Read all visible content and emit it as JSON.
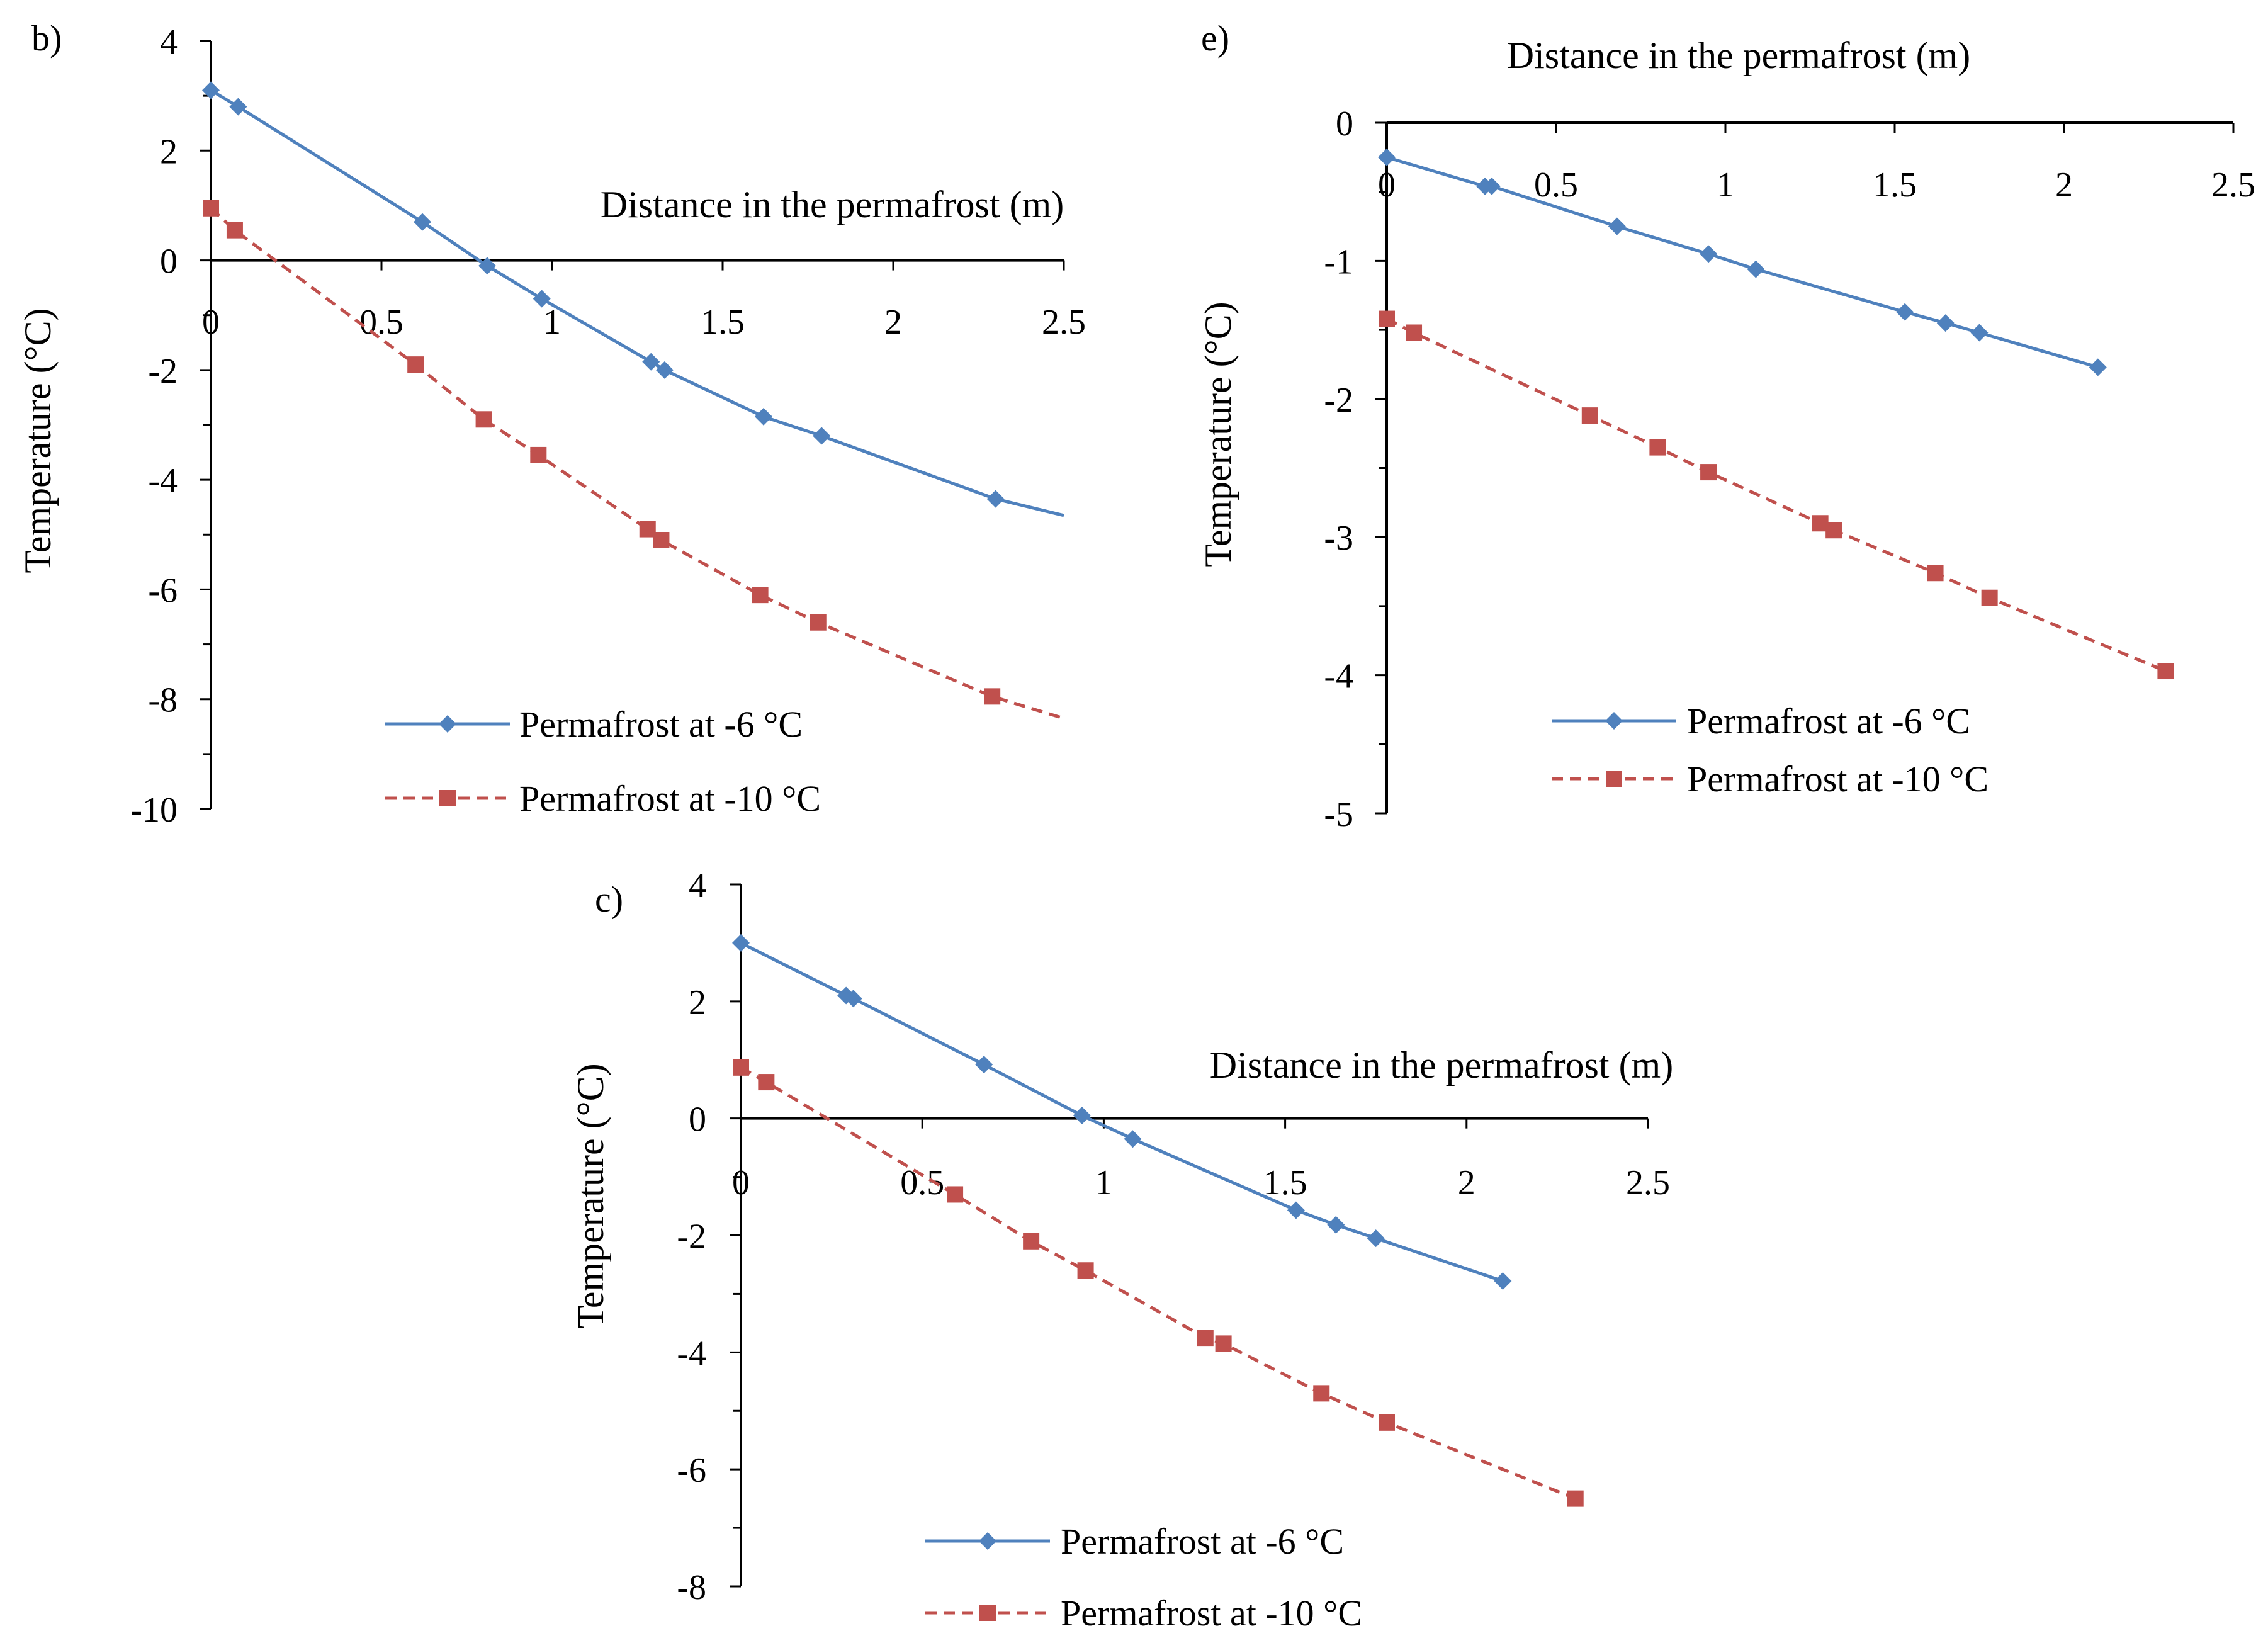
{
  "colors": {
    "axis": "#000000",
    "blue": "#4f81bd",
    "red": "#c0504d"
  },
  "chart_data": [
    {
      "panel_label": "b)",
      "type": "line",
      "title": "",
      "xlabel": "Distance in the permafrost (m)",
      "ylabel": "Temperature (°C)",
      "xlim": [
        0,
        2.5
      ],
      "ylim": [
        -10,
        4
      ],
      "xticks": [
        0,
        0.5,
        1,
        1.5,
        2,
        2.5
      ],
      "xtick_labels": [
        "0",
        "0.5",
        "1",
        "1.5",
        "2",
        "2.5"
      ],
      "yticks": [
        4,
        2,
        0,
        -2,
        -4,
        -6,
        -8,
        -10
      ],
      "ytick_labels": [
        "4",
        "2",
        "0",
        "-2",
        "-4",
        "-6",
        "-8",
        "-10"
      ],
      "series": [
        {
          "name": "Permafrost at -6 °C",
          "marker": "diamond",
          "line": "solid",
          "color": "#4f81bd",
          "x": [
            0,
            0.08,
            0.62,
            0.81,
            0.97,
            1.29,
            1.33,
            1.62,
            1.79,
            2.3
          ],
          "y": [
            3.1,
            2.8,
            0.7,
            -0.1,
            -0.7,
            -1.85,
            -2.0,
            -2.85,
            -3.2,
            -4.35
          ],
          "line_end": [
            2.5,
            -4.65
          ]
        },
        {
          "name": "Permafrost at -10 °C",
          "marker": "square",
          "line": "dashed",
          "color": "#c0504d",
          "x": [
            0,
            0.07,
            0.6,
            0.8,
            0.96,
            1.28,
            1.32,
            1.61,
            1.78,
            2.29
          ],
          "y": [
            0.95,
            0.55,
            -1.9,
            -2.9,
            -3.55,
            -4.9,
            -5.1,
            -6.1,
            -6.6,
            -7.95
          ],
          "line_end": [
            2.5,
            -8.35
          ]
        }
      ]
    },
    {
      "panel_label": "e)",
      "type": "line",
      "title": "",
      "xlabel": "Distance in the permafrost (m)",
      "ylabel": "Temperature (°C)",
      "xlim": [
        0,
        2.5
      ],
      "ylim": [
        -5,
        0
      ],
      "xticks": [
        0,
        0.5,
        1,
        1.5,
        2,
        2.5
      ],
      "xtick_labels": [
        "0",
        "0.5",
        "1",
        "1.5",
        "2",
        "2.5"
      ],
      "yticks": [
        0,
        -1,
        -2,
        -3,
        -4,
        -5
      ],
      "ytick_labels": [
        "0",
        "-1",
        "-2",
        "-3",
        "-4",
        "-5"
      ],
      "series": [
        {
          "name": "Permafrost at -6 °C",
          "marker": "diamond",
          "line": "solid",
          "color": "#4f81bd",
          "x": [
            0,
            0.29,
            0.31,
            0.68,
            0.95,
            1.09,
            1.53,
            1.65,
            1.75,
            2.1
          ],
          "y": [
            -0.25,
            -0.46,
            -0.46,
            -0.75,
            -0.95,
            -1.06,
            -1.37,
            -1.45,
            -1.52,
            -1.77
          ],
          "line_end": null
        },
        {
          "name": "Permafrost at -10 °C",
          "marker": "square",
          "line": "dashed",
          "color": "#c0504d",
          "x": [
            0,
            0.08,
            0.6,
            0.8,
            0.95,
            1.28,
            1.32,
            1.62,
            1.78,
            2.3
          ],
          "y": [
            -1.42,
            -1.52,
            -2.12,
            -2.35,
            -2.53,
            -2.9,
            -2.95,
            -3.26,
            -3.44,
            -3.97
          ],
          "line_end": null
        }
      ]
    },
    {
      "panel_label": "c)",
      "type": "line",
      "title": "",
      "xlabel": "Distance in the permafrost (m)",
      "ylabel": "Temperature (°C)",
      "xlim": [
        0,
        2.5
      ],
      "ylim": [
        -8,
        4
      ],
      "xticks": [
        0,
        0.5,
        1,
        1.5,
        2,
        2.5
      ],
      "xtick_labels": [
        "0",
        "0.5",
        "1",
        "1.5",
        "2",
        "2.5"
      ],
      "yticks": [
        4,
        2,
        0,
        -2,
        -4,
        -6,
        -8
      ],
      "ytick_labels": [
        "4",
        "2",
        "0",
        "-2",
        "-4",
        "-6",
        "-8"
      ],
      "series": [
        {
          "name": "Permafrost at -6 °C",
          "marker": "diamond",
          "line": "solid",
          "color": "#4f81bd",
          "x": [
            0,
            0.29,
            0.31,
            0.67,
            0.94,
            1.08,
            1.53,
            1.64,
            1.75,
            2.1
          ],
          "y": [
            3.0,
            2.1,
            2.05,
            0.92,
            0.05,
            -0.35,
            -1.57,
            -1.82,
            -2.05,
            -2.78
          ],
          "line_end": null
        },
        {
          "name": "Permafrost at -10 °C",
          "marker": "square",
          "line": "dashed",
          "color": "#c0504d",
          "x": [
            0,
            0.07,
            0.59,
            0.8,
            0.95,
            1.28,
            1.33,
            1.6,
            1.78,
            2.3
          ],
          "y": [
            0.87,
            0.62,
            -1.3,
            -2.1,
            -2.6,
            -3.75,
            -3.85,
            -4.7,
            -5.2,
            -6.5
          ],
          "line_end": null
        }
      ]
    }
  ]
}
